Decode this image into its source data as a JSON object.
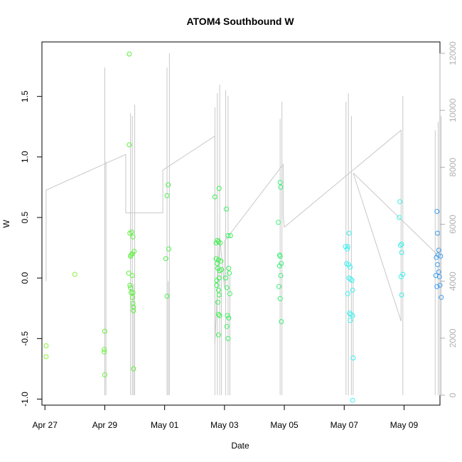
{
  "chart_data": {
    "type": "scatter",
    "title": "ATOM4 Southbound W",
    "xlabel": "Date",
    "ylabel": "W",
    "xlim": [
      -0.05,
      6.6
    ],
    "ylim": [
      -1.05,
      1.95
    ],
    "y2lim": [
      -350,
      12400
    ],
    "x_ticks": [
      {
        "v": 0,
        "label": "Apr 27"
      },
      {
        "v": 1,
        "label": "Apr 29"
      },
      {
        "v": 2,
        "label": "May 01"
      },
      {
        "v": 3,
        "label": "May 03"
      },
      {
        "v": 4,
        "label": "May 05"
      },
      {
        "v": 5,
        "label": "May 07"
      },
      {
        "v": 6,
        "label": "May 09"
      }
    ],
    "y_ticks": [
      {
        "v": -1.0,
        "label": "-1.0"
      },
      {
        "v": -0.5,
        "label": "-0.5"
      },
      {
        "v": 0.0,
        "label": "0.0"
      },
      {
        "v": 0.5,
        "label": "0.5"
      },
      {
        "v": 1.0,
        "label": "1.0"
      },
      {
        "v": 1.5,
        "label": "1.5"
      }
    ],
    "y2_ticks": [
      {
        "v": 0,
        "label": "0"
      },
      {
        "v": 2000,
        "label": "2000"
      },
      {
        "v": 4000,
        "label": "4000"
      },
      {
        "v": 6000,
        "label": "6000"
      },
      {
        "v": 8000,
        "label": "8000"
      },
      {
        "v": 10000,
        "label": "10000"
      },
      {
        "v": 12000,
        "label": "12000"
      }
    ],
    "series": [
      {
        "name": "W",
        "points": [
          [
            0.02,
            -0.56,
            "#8df03c"
          ],
          [
            0.02,
            -0.65,
            "#8df03c"
          ],
          [
            0.5,
            0.03,
            "#8df03c"
          ],
          [
            1.0,
            -0.44,
            "#6ef03c"
          ],
          [
            0.99,
            -0.59,
            "#6ef03c"
          ],
          [
            0.99,
            -0.61,
            "#6ef03c"
          ],
          [
            1.0,
            -0.8,
            "#6ef03c"
          ],
          [
            1.41,
            1.85,
            "#5cf03c"
          ],
          [
            1.41,
            1.1,
            "#5cf03c"
          ],
          [
            1.42,
            0.37,
            "#5cf03c"
          ],
          [
            1.45,
            0.38,
            "#5cf03c"
          ],
          [
            1.47,
            0.34,
            "#5cf03c"
          ],
          [
            1.43,
            0.18,
            "#5cf03c"
          ],
          [
            1.44,
            0.19,
            "#5cf03c"
          ],
          [
            1.46,
            0.2,
            "#5cf03c"
          ],
          [
            1.49,
            0.22,
            "#5cf03c"
          ],
          [
            1.4,
            0.04,
            "#5cf03c"
          ],
          [
            1.46,
            0.02,
            "#5cf03c"
          ],
          [
            1.42,
            -0.06,
            "#5cf03c"
          ],
          [
            1.43,
            -0.08,
            "#5cf03c"
          ],
          [
            1.44,
            -0.12,
            "#5cf03c"
          ],
          [
            1.47,
            -0.12,
            "#5cf03c"
          ],
          [
            1.46,
            -0.16,
            "#5cf03c"
          ],
          [
            1.47,
            -0.21,
            "#5cf03c"
          ],
          [
            1.48,
            -0.24,
            "#5cf03c"
          ],
          [
            1.48,
            -0.27,
            "#5cf03c"
          ],
          [
            1.48,
            -0.75,
            "#5cf03c"
          ],
          [
            2.06,
            0.77,
            "#48f048"
          ],
          [
            2.04,
            0.68,
            "#48f048"
          ],
          [
            2.07,
            0.24,
            "#48f048"
          ],
          [
            2.02,
            0.16,
            "#48f048"
          ],
          [
            2.04,
            -0.15,
            "#48f048"
          ],
          [
            2.84,
            0.67,
            "#3cf050"
          ],
          [
            2.91,
            0.74,
            "#3cf050"
          ],
          [
            2.88,
            0.31,
            "#3cf050"
          ],
          [
            2.9,
            0.3,
            "#3cf050"
          ],
          [
            2.86,
            0.29,
            "#3cf050"
          ],
          [
            2.93,
            0.29,
            "#3cf050"
          ],
          [
            2.86,
            0.16,
            "#3cf050"
          ],
          [
            2.9,
            0.15,
            "#3cf050"
          ],
          [
            2.94,
            0.14,
            "#3cf050"
          ],
          [
            2.88,
            0.12,
            "#3cf050"
          ],
          [
            2.89,
            0.08,
            "#3cf050"
          ],
          [
            2.92,
            0.06,
            "#3cf050"
          ],
          [
            2.95,
            0.07,
            "#3cf050"
          ],
          [
            2.87,
            -0.02,
            "#3cf050"
          ],
          [
            2.91,
            0.0,
            "#3cf050"
          ],
          [
            2.87,
            -0.06,
            "#3cf050"
          ],
          [
            2.9,
            -0.1,
            "#3cf050"
          ],
          [
            2.91,
            -0.14,
            "#3cf050"
          ],
          [
            2.89,
            -0.2,
            "#3cf050"
          ],
          [
            2.9,
            -0.3,
            "#3cf050"
          ],
          [
            2.92,
            -0.31,
            "#3cf050"
          ],
          [
            2.9,
            -0.47,
            "#3cf050"
          ],
          [
            3.03,
            0.57,
            "#3cf060"
          ],
          [
            3.06,
            0.35,
            "#3cf060"
          ],
          [
            3.1,
            0.35,
            "#3cf060"
          ],
          [
            3.07,
            0.08,
            "#3cf060"
          ],
          [
            3.08,
            0.04,
            "#3cf060"
          ],
          [
            3.02,
            0.0,
            "#3cf060"
          ],
          [
            3.04,
            -0.08,
            "#3cf060"
          ],
          [
            3.09,
            -0.13,
            "#3cf060"
          ],
          [
            3.05,
            -0.31,
            "#3cf060"
          ],
          [
            3.07,
            -0.33,
            "#3cf060"
          ],
          [
            3.04,
            -0.4,
            "#3cf060"
          ],
          [
            3.06,
            -0.5,
            "#3cf060"
          ],
          [
            3.93,
            0.79,
            "#3cf07a"
          ],
          [
            3.94,
            0.75,
            "#3cf07a"
          ],
          [
            3.9,
            0.46,
            "#3cf07a"
          ],
          [
            3.92,
            0.19,
            "#3cf07a"
          ],
          [
            3.93,
            0.18,
            "#3cf07a"
          ],
          [
            3.95,
            0.12,
            "#3cf07a"
          ],
          [
            3.92,
            0.1,
            "#3cf07a"
          ],
          [
            3.94,
            0.02,
            "#3cf07a"
          ],
          [
            3.91,
            -0.07,
            "#3cf07a"
          ],
          [
            3.93,
            -0.17,
            "#3cf07a"
          ],
          [
            3.95,
            -0.36,
            "#3cf07a"
          ],
          [
            5.93,
            0.63,
            "#3cf0e6"
          ],
          [
            5.92,
            0.5,
            "#3cf0e6"
          ],
          [
            5.96,
            0.28,
            "#3cf0e6"
          ],
          [
            5.94,
            0.27,
            "#3cf0e6"
          ],
          [
            5.96,
            0.21,
            "#3cf0e6"
          ],
          [
            5.98,
            0.03,
            "#3cf0e6"
          ],
          [
            5.95,
            0.01,
            "#3cf0e6"
          ],
          [
            5.96,
            -0.14,
            "#3cf0e6"
          ],
          [
            5.08,
            0.37,
            "#3cf0f0"
          ],
          [
            5.02,
            0.26,
            "#3cf0f0"
          ],
          [
            5.05,
            0.24,
            "#3cf0f0"
          ],
          [
            5.06,
            0.26,
            "#3cf0f0"
          ],
          [
            5.04,
            0.12,
            "#3cf0f0"
          ],
          [
            5.07,
            0.11,
            "#3cf0f0"
          ],
          [
            5.1,
            0.09,
            "#3cf0f0"
          ],
          [
            5.08,
            0.0,
            "#3cf0f0"
          ],
          [
            5.11,
            -0.01,
            "#3cf0f0"
          ],
          [
            5.13,
            -0.02,
            "#3cf0f0"
          ],
          [
            5.14,
            -0.1,
            "#3cf0f0"
          ],
          [
            5.06,
            -0.13,
            "#3cf0f0"
          ],
          [
            5.09,
            -0.29,
            "#3cf0f0"
          ],
          [
            5.11,
            -0.3,
            "#3cf0f0"
          ],
          [
            5.14,
            -0.31,
            "#3cf0f0"
          ],
          [
            5.1,
            -0.35,
            "#3cf0f0"
          ],
          [
            5.15,
            -0.66,
            "#3cf0f0"
          ],
          [
            5.14,
            -1.01,
            "#3cf0f0"
          ],
          [
            6.55,
            0.55,
            "#3c9ef0"
          ],
          [
            6.56,
            0.37,
            "#3c9ef0"
          ],
          [
            6.58,
            0.23,
            "#3c9ef0"
          ],
          [
            6.57,
            0.19,
            "#3c9ef0"
          ],
          [
            6.61,
            0.18,
            "#3c9ef0"
          ],
          [
            6.54,
            0.17,
            "#3c9ef0"
          ],
          [
            6.56,
            0.11,
            "#3c9ef0"
          ],
          [
            6.58,
            0.05,
            "#3c9ef0"
          ],
          [
            6.53,
            0.02,
            "#3c9ef0"
          ],
          [
            6.59,
            0.01,
            "#3c9ef0"
          ],
          [
            6.55,
            -0.07,
            "#3c9ef0"
          ],
          [
            6.6,
            -0.06,
            "#3c9ef0"
          ],
          [
            6.62,
            -0.16,
            "#3c9ef0"
          ]
        ]
      },
      {
        "name": "secondary",
        "color": "#c8c8c8",
        "line": [
          [
            0.02,
            4000
          ],
          [
            0.02,
            7200
          ],
          [
            1.35,
            8450
          ],
          [
            1.35,
            6400
          ],
          [
            1.97,
            6400
          ],
          [
            1.97,
            7900
          ],
          [
            2.84,
            9100
          ],
          [
            2.84,
            1800
          ],
          [
            2.92,
            5600
          ],
          [
            3.0,
            3800
          ],
          [
            3.0,
            5400
          ],
          [
            3.98,
            8100
          ],
          [
            3.98,
            6300
          ],
          [
            4.0,
            5900
          ],
          [
            5.95,
            9300
          ],
          [
            5.95,
            2600
          ],
          [
            5.15,
            7800
          ],
          [
            6.55,
            4950
          ]
        ],
        "spikes": [
          [
            1.0,
            11500
          ],
          [
            1.02,
            8200
          ],
          [
            1.43,
            9900
          ],
          [
            1.46,
            9800
          ],
          [
            1.5,
            10200
          ],
          [
            1.48,
            3900
          ],
          [
            2.04,
            11500
          ],
          [
            2.08,
            12000
          ],
          [
            2.06,
            4000
          ],
          [
            2.84,
            10100
          ],
          [
            2.88,
            10600
          ],
          [
            2.92,
            10900
          ],
          [
            2.95,
            4500
          ],
          [
            3.02,
            10700
          ],
          [
            3.06,
            10500
          ],
          [
            3.09,
            4200
          ],
          [
            3.96,
            10300
          ],
          [
            3.93,
            9700
          ],
          [
            5.03,
            10300
          ],
          [
            5.07,
            10600
          ],
          [
            5.12,
            9800
          ],
          [
            5.15,
            4000
          ],
          [
            5.98,
            10500
          ],
          [
            6.52,
            9300
          ],
          [
            6.57,
            9600
          ],
          [
            6.62,
            9800
          ]
        ]
      }
    ]
  }
}
